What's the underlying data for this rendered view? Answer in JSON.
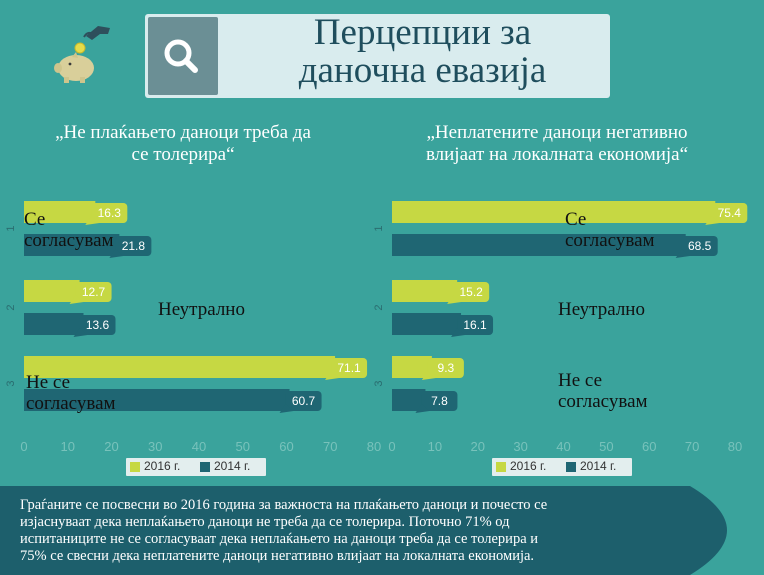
{
  "header": {
    "title_line1": "Перцепции за",
    "title_line2": "даночна евазија"
  },
  "icons": {
    "logo": "piggy-bank-coin-hand-icon",
    "search": "magnifier-icon"
  },
  "colors": {
    "background": "#3aa39c",
    "series_2016": "#c6d843",
    "series_2014": "#1f6673",
    "title_bg": "#d9ecee"
  },
  "charts": {
    "left": {
      "title_line1": "„Не плаќањето даноци треба да",
      "title_line2": "се толерира“",
      "category_labels": [
        [
          "Се",
          "согласувам"
        ],
        [
          "Неутрално"
        ],
        [
          "Не се",
          "согласувам"
        ]
      ],
      "legend": [
        "2016 г.",
        "2014 г."
      ]
    },
    "right": {
      "title_line1": "„Неплатените даноци негативно",
      "title_line2": "влијаат на локалната економија“",
      "category_labels": [
        [
          "Се",
          "согласувам"
        ],
        [
          "Неутрално"
        ],
        [
          "Не се",
          "согласувам"
        ]
      ],
      "legend": [
        "2016 г.",
        "2014 г."
      ]
    }
  },
  "footer": {
    "lines": [
      "Граѓаните се посвесни во 2016 година за важноста на плаќањето даноци и почесто се",
      "изјаснуваат дека неплаќањето даноци не треба да се толерира. Поточно 71% од",
      "испитаниците не се согласуваат дека неплаќањето на даноци треба да се толерира и",
      "75% се свесни дека неплатените даноци негативно влијаат на локалната економија."
    ]
  },
  "chart_data": [
    {
      "type": "bar",
      "orientation": "horizontal",
      "title": "„Не плаќањето даноци треба да се толерира“",
      "categories": [
        "1",
        "2",
        "3"
      ],
      "category_names": [
        "Се согласувам",
        "Неутрално",
        "Не се согласувам"
      ],
      "series": [
        {
          "name": "2016 г.",
          "values": [
            16.3,
            12.7,
            71.1
          ]
        },
        {
          "name": "2014 г.",
          "values": [
            21.8,
            13.6,
            60.7
          ]
        }
      ],
      "xlim": [
        0,
        80
      ],
      "xticks": [
        0,
        10,
        20,
        30,
        40,
        50,
        60,
        70,
        80
      ],
      "legend": "bottom"
    },
    {
      "type": "bar",
      "orientation": "horizontal",
      "title": "„Неплатените даноци негативно влијаат на локалната економија“",
      "categories": [
        "1",
        "2",
        "3"
      ],
      "category_names": [
        "Се согласувам",
        "Неутрално",
        "Не се согласувам"
      ],
      "series": [
        {
          "name": "2016 г.",
          "values": [
            75.4,
            15.2,
            9.3
          ]
        },
        {
          "name": "2014 г.",
          "values": [
            68.5,
            16.1,
            7.8
          ]
        }
      ],
      "xlim": [
        0,
        80
      ],
      "xticks": [
        0,
        10,
        20,
        30,
        40,
        50,
        60,
        70,
        80
      ],
      "legend": "bottom"
    }
  ]
}
